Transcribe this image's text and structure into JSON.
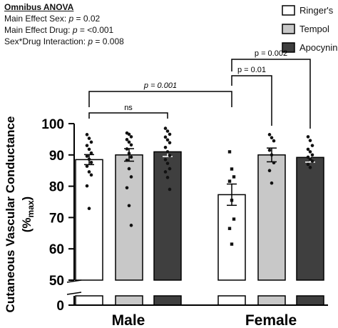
{
  "stats_box": {
    "heading": "Omnibus ANOVA",
    "lines": [
      {
        "prefix": "Main Effect Sex: ",
        "italic": "p",
        "suffix": " = 0.02"
      },
      {
        "prefix": "Main Effect Drug: ",
        "italic": "p",
        "suffix": " = <0.001"
      },
      {
        "prefix": "Sex*Drug Interaction: ",
        "italic": "p",
        "suffix": " = 0.008"
      }
    ]
  },
  "chart_data": {
    "type": "bar",
    "categories": [
      "Male",
      "Female"
    ],
    "ylabel": "Cutaneous Vascular Conductance",
    "ylabel_line2_base": "(%",
    "ylabel_line2_sub": "max",
    "ylabel_line2_end": ")",
    "ylim": [
      0,
      100
    ],
    "axis_break": [
      0,
      50
    ],
    "yticks": [
      0,
      50,
      60,
      70,
      80,
      90,
      100
    ],
    "series": [
      {
        "name": "Ringer's",
        "color": "#ffffff",
        "values": [
          88.5,
          77.3
        ],
        "sem": [
          1.6,
          3.4
        ],
        "points": [
          [
            96.5,
            95.3,
            94.1,
            93.0,
            91.8,
            90.6,
            89.6,
            88.6,
            87.6,
            86.4,
            84.6,
            83.6,
            80.1,
            72.9
          ],
          [
            91.0,
            85.5,
            83.0,
            81.6,
            75.5,
            69.5,
            66.5,
            61.5
          ]
        ]
      },
      {
        "name": "Tempol",
        "color": "#c8c8c8",
        "values": [
          90.0,
          90.0
        ],
        "sem": [
          2.0,
          2.2
        ],
        "points": [
          [
            97.0,
            96.6,
            95.8,
            94.9,
            94.1,
            93.2,
            91.9,
            90.5,
            89.3,
            88.3,
            85.6,
            83.0,
            79.5,
            73.8,
            67.5
          ],
          [
            96.5,
            95.5,
            94.5,
            91.5,
            90.0,
            87.5,
            85.0,
            81.0
          ]
        ]
      },
      {
        "name": "Apocynin",
        "color": "#3f3f3f",
        "values": [
          91.0,
          89.2
        ],
        "sem": [
          1.5,
          1.5
        ],
        "points": [
          [
            98.5,
            97.6,
            96.6,
            95.7,
            94.8,
            93.9,
            92.4,
            91.0,
            89.8,
            88.5,
            87.3,
            85.6,
            84.6,
            82.8,
            79.0
          ],
          [
            95.8,
            94.6,
            93.0,
            91.8,
            91.0,
            90.0,
            89.3,
            88.6,
            88.0,
            87.0,
            86.0
          ]
        ]
      }
    ],
    "annotations": [
      {
        "label": "ns",
        "italic": false
      },
      {
        "label": "p = 0.001",
        "italic": true
      },
      {
        "label": "p = 0.01",
        "italic": false
      },
      {
        "label": "p = 0.002",
        "italic": false
      }
    ]
  }
}
